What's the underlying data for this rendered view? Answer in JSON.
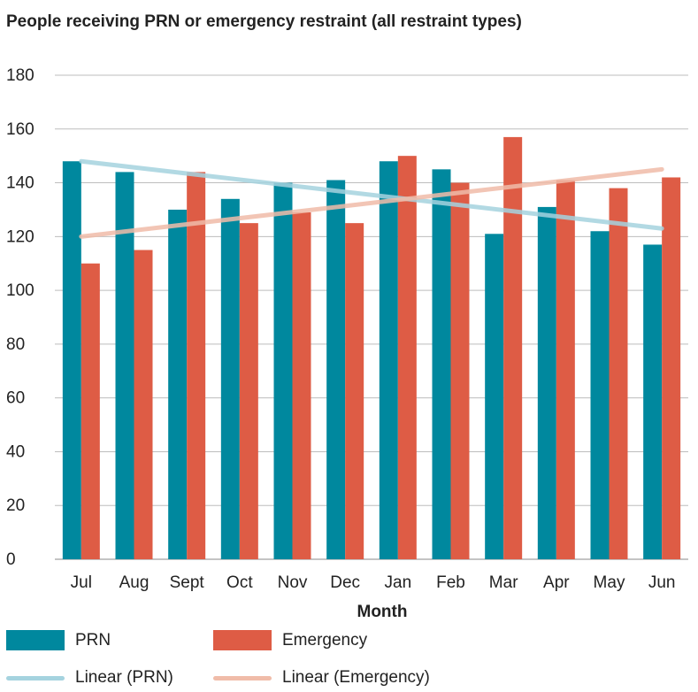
{
  "chart_data": {
    "type": "bar",
    "title": "People receiving PRN or emergency restraint (all restraint types)",
    "xlabel": "Month",
    "ylabel": "",
    "ylim": [
      0,
      180
    ],
    "yticks": [
      "0",
      "20",
      "40",
      "60",
      "80",
      "100",
      "120",
      "140",
      "160",
      "180"
    ],
    "categories": [
      "Jul",
      "Aug",
      "Sept",
      "Oct",
      "Nov",
      "Dec",
      "Jan",
      "Feb",
      "Mar",
      "Apr",
      "May",
      "Jun"
    ],
    "series": [
      {
        "name": "PRN",
        "values": [
          148,
          144,
          130,
          134,
          140,
          141,
          148,
          145,
          121,
          131,
          122,
          117
        ],
        "color": "#00889e"
      },
      {
        "name": "Emergency",
        "values": [
          110,
          115,
          144,
          125,
          129,
          125,
          150,
          140,
          157,
          141,
          138,
          142
        ],
        "color": "#de5c45"
      }
    ],
    "trendlines": [
      {
        "name": "Linear (PRN)",
        "start": 148,
        "end": 123,
        "color": "#a5d3df"
      },
      {
        "name": "Linear (Emergency)",
        "start": 120,
        "end": 145,
        "color": "#f0bca9"
      }
    ],
    "grid": true,
    "legend_position": "bottom-left"
  }
}
